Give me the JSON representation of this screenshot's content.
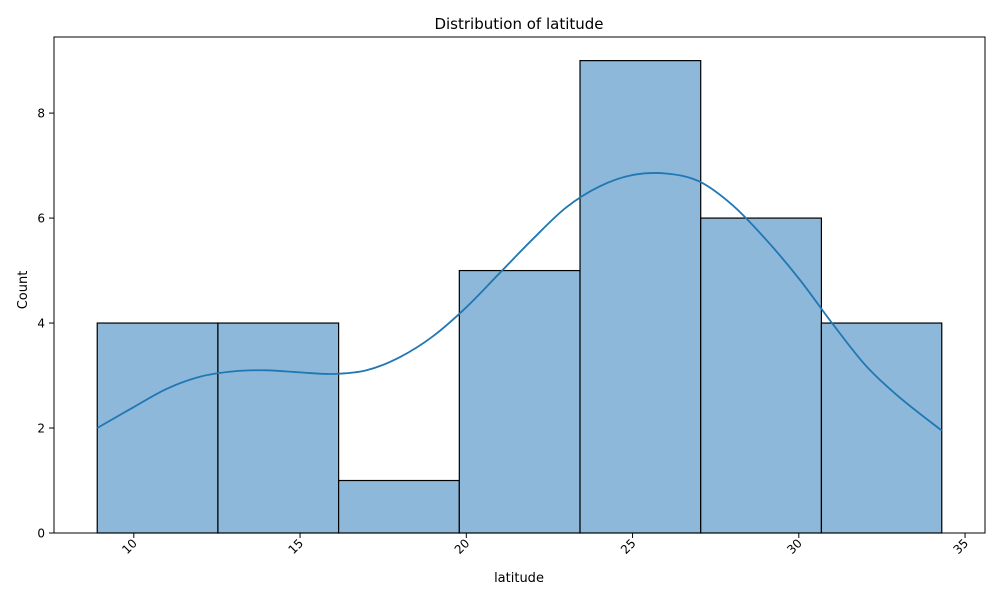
{
  "chart_data": {
    "type": "bar",
    "title": "Distribution of latitude",
    "xlabel": "latitude",
    "ylabel": "Count",
    "bins": [
      {
        "x0": 8.9,
        "x1": 12.53,
        "count": 4
      },
      {
        "x0": 12.53,
        "x1": 16.16,
        "count": 4
      },
      {
        "x0": 16.16,
        "x1": 19.79,
        "count": 1
      },
      {
        "x0": 19.79,
        "x1": 23.42,
        "count": 5
      },
      {
        "x0": 23.42,
        "x1": 27.05,
        "count": 9
      },
      {
        "x0": 27.05,
        "x1": 30.68,
        "count": 6
      },
      {
        "x0": 30.68,
        "x1": 34.3,
        "count": 4
      }
    ],
    "kde": {
      "x": [
        8.9,
        10,
        11,
        12,
        13,
        14,
        15,
        16,
        17,
        18,
        19,
        20,
        21,
        22,
        23,
        24,
        25,
        26,
        27,
        28,
        29,
        30,
        31,
        32,
        33,
        34.3
      ],
      "y": [
        2.0,
        2.4,
        2.75,
        2.98,
        3.08,
        3.1,
        3.06,
        3.03,
        3.1,
        3.35,
        3.75,
        4.3,
        4.95,
        5.6,
        6.2,
        6.6,
        6.82,
        6.85,
        6.7,
        6.25,
        5.6,
        4.85,
        4.0,
        3.2,
        2.6,
        1.95
      ]
    },
    "xticks": [
      10,
      15,
      20,
      25,
      30,
      35
    ],
    "yticks": [
      0,
      2,
      4,
      6,
      8
    ],
    "xlim": [
      7.6,
      35.6
    ],
    "ylim": [
      0,
      9.45
    ],
    "grid": false,
    "colors": {
      "bar_fill": "#8db8d9",
      "bar_edge": "#000000",
      "kde_line": "#1f77b4"
    }
  }
}
